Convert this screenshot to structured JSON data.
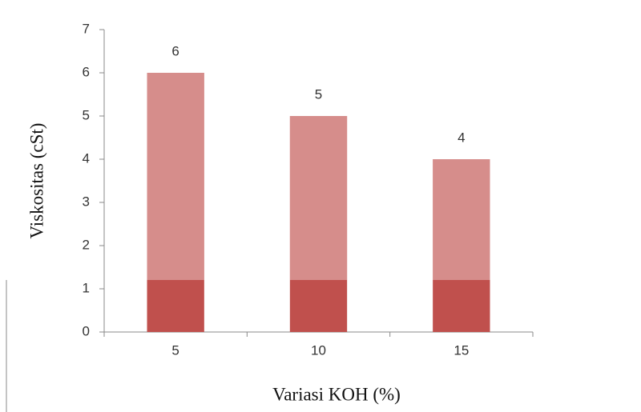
{
  "chart_data": {
    "type": "bar",
    "x_label": "Variasi  KOH (%)",
    "y_label": "Viskositas (cSt)",
    "categories": [
      "5",
      "10",
      "15"
    ],
    "values": [
      6,
      5,
      4
    ],
    "color": "#c0504d",
    "ylim": [
      0,
      7
    ],
    "yticks": [
      0,
      1,
      2,
      3,
      4,
      5,
      6,
      7
    ],
    "grid": false,
    "data_labels": true
  }
}
